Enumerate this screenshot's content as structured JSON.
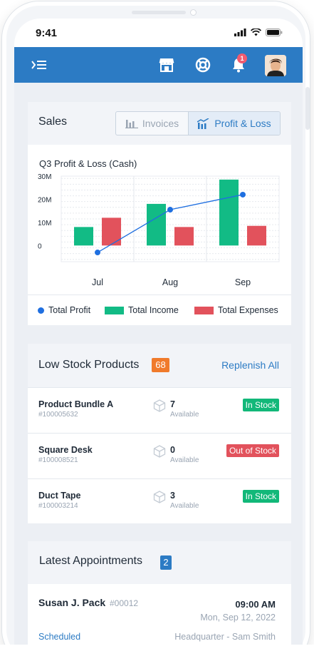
{
  "status_bar": {
    "time": "9:41"
  },
  "app_bar": {
    "notification_count": "1"
  },
  "sales": {
    "title": "Sales",
    "tabs": [
      {
        "label": "Invoices",
        "selected": false
      },
      {
        "label": "Profit & Loss",
        "selected": true
      }
    ],
    "chart_title": "Q3 Profit & Loss (Cash)"
  },
  "chart_data": {
    "type": "bar",
    "categories": [
      "Jul",
      "Aug",
      "Sep"
    ],
    "series": [
      {
        "name": "Total Income",
        "kind": "bar",
        "color": "#12bb85",
        "values": [
          8,
          18,
          28.5
        ]
      },
      {
        "name": "Total Expenses",
        "kind": "bar",
        "color": "#e2525c",
        "values": [
          12,
          8,
          8.5
        ]
      },
      {
        "name": "Total Profit",
        "kind": "line",
        "color": "#1f6fe0",
        "values": [
          -3,
          15.5,
          22
        ]
      }
    ],
    "yticks": [
      "30M",
      "20M",
      "10M",
      "0"
    ],
    "ylim": [
      -7,
      30
    ],
    "grid": true,
    "legend_position": "bottom",
    "legend": [
      "Total Profit",
      "Total Income",
      "Total Expenses"
    ]
  },
  "low_stock": {
    "title": "Low Stock Products",
    "count": "68",
    "count_color": "#f07a2b",
    "action": "Replenish All",
    "items": [
      {
        "name": "Product Bundle A",
        "sku": "#100005632",
        "qty": "7",
        "qty_label": "Available",
        "status": "In Stock",
        "status_color": "#12b879"
      },
      {
        "name": "Square Desk",
        "sku": "#100008521",
        "qty": "0",
        "qty_label": "Available",
        "status": "Out of Stock",
        "status_color": "#e2525c"
      },
      {
        "name": "Duct Tape",
        "sku": "#100003214",
        "qty": "3",
        "qty_label": "Available",
        "status": "In Stock",
        "status_color": "#12b879"
      }
    ]
  },
  "appointments": {
    "title": "Latest Appointments",
    "count": "2",
    "count_color": "#2c7bc4",
    "items": [
      {
        "name": "Susan J. Pack",
        "id": "#00012",
        "time": "09:00 AM",
        "date": "Mon, Sep 12, 2022",
        "status": "Scheduled",
        "location": "Headquarter - Sam Smith"
      }
    ]
  },
  "colors": {
    "accent": "#2c7bc4",
    "in_stock": "#12b879",
    "out_of_stock": "#e2525c"
  },
  "icons": [
    "menu-icon",
    "store-icon",
    "support-icon",
    "bell-icon",
    "box-icon"
  ]
}
